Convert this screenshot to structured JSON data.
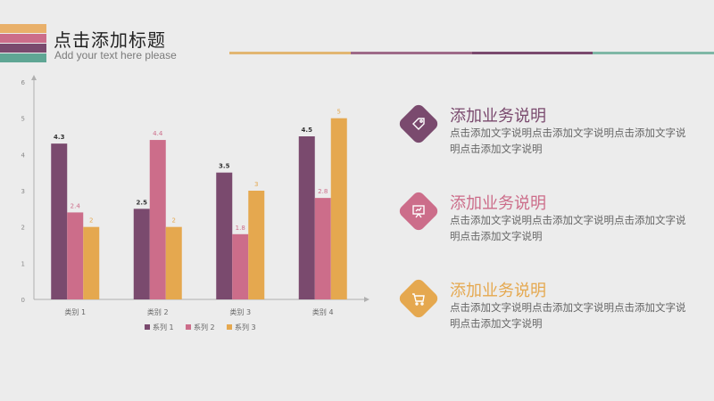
{
  "header": {
    "title": "点击添加标题",
    "subtitle": "Add your text here please",
    "stripe_colors": [
      "#e9b06a",
      "#cc6d8a",
      "#7a4a6e",
      "#5fa694"
    ],
    "line_colors": [
      "#e2b672",
      "#9e6a88",
      "#7a4a6e",
      "#7fb7a6"
    ]
  },
  "items": [
    {
      "title": "添加业务说明",
      "desc": "点击添加文字说明点击添加文字说明点击添加文字说明点击添加文字说明",
      "color": "#7a4a6e",
      "icon": "tag-icon"
    },
    {
      "title": "添加业务说明",
      "desc": "点击添加文字说明点击添加文字说明点击添加文字说明点击添加文字说明",
      "color": "#cc6d8a",
      "icon": "presentation-board-icon"
    },
    {
      "title": "添加业务说明",
      "desc": "点击添加文字说明点击添加文字说明点击添加文字说明点击添加文字说明",
      "color": "#e5a84f",
      "icon": "shopping-cart-icon"
    }
  ],
  "chart_data": {
    "type": "bar",
    "categories": [
      "类别 1",
      "类别 2",
      "类别 3",
      "类别 4"
    ],
    "series": [
      {
        "name": "系列 1",
        "values": [
          4.3,
          2.5,
          3.5,
          4.5
        ],
        "color": "#7a4a6e"
      },
      {
        "name": "系列 2",
        "values": [
          2.4,
          4.4,
          1.8,
          2.8
        ],
        "color": "#cc6d8a"
      },
      {
        "name": "系列 3",
        "values": [
          2,
          2,
          3,
          5
        ],
        "color": "#e5a84f"
      }
    ],
    "yticks": [
      "0",
      "1",
      "2",
      "3",
      "4",
      "5",
      "6"
    ],
    "ylim": [
      0,
      6
    ],
    "grid": false,
    "legend": "bottom"
  }
}
